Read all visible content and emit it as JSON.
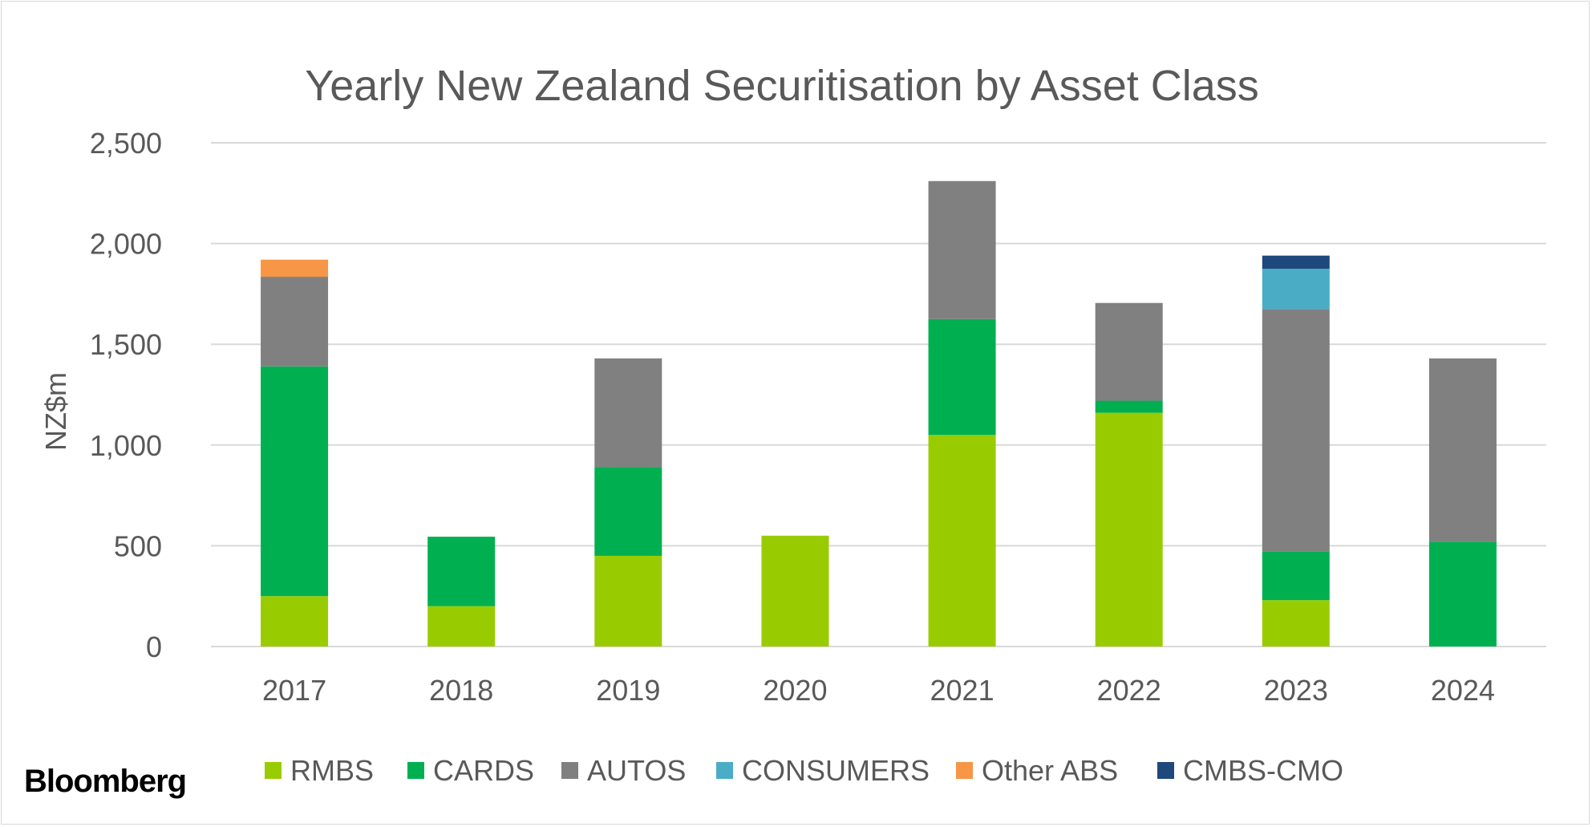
{
  "brand": "Bloomberg",
  "chart_data": {
    "type": "bar",
    "stacked": true,
    "title": "Yearly New Zealand Securitisation by Asset Class",
    "xlabel": "",
    "ylabel": "NZ$m",
    "ylim": [
      0,
      2500
    ],
    "yticks": [
      0,
      500,
      1000,
      1500,
      2000,
      2500
    ],
    "ytick_labels": [
      "0",
      "500",
      "1,000",
      "1,500",
      "2,000",
      "2,500"
    ],
    "grid": true,
    "legend_position": "bottom",
    "categories": [
      "2017",
      "2018",
      "2019",
      "2020",
      "2021",
      "2022",
      "2023",
      "2024"
    ],
    "series": [
      {
        "name": "RMBS",
        "color": "#99cc00",
        "values": [
          250,
          200,
          450,
          550,
          1050,
          1160,
          230,
          0
        ]
      },
      {
        "name": "CARDS",
        "color": "#00b050",
        "values": [
          1140,
          345,
          440,
          0,
          575,
          60,
          240,
          520
        ]
      },
      {
        "name": "AUTOS",
        "color": "#808080",
        "values": [
          445,
          0,
          540,
          0,
          685,
          485,
          1205,
          910
        ]
      },
      {
        "name": "CONSUMERS",
        "color": "#4bacc6",
        "values": [
          0,
          0,
          0,
          0,
          0,
          0,
          200,
          0
        ]
      },
      {
        "name": "Other ABS",
        "color": "#f79646",
        "values": [
          85,
          0,
          0,
          0,
          0,
          0,
          0,
          0
        ]
      },
      {
        "name": "CMBS-CMO",
        "color": "#1f497d",
        "values": [
          0,
          0,
          0,
          0,
          0,
          0,
          65,
          0
        ]
      }
    ]
  }
}
